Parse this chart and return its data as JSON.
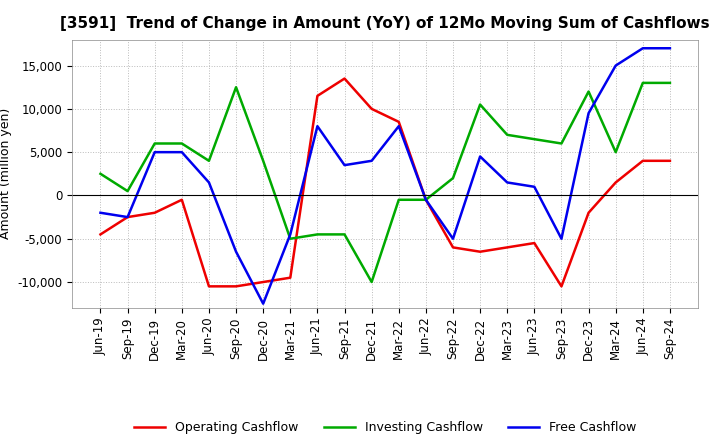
{
  "title": "[3591]  Trend of Change in Amount (YoY) of 12Mo Moving Sum of Cashflows",
  "ylabel": "Amount (million yen)",
  "x_labels": [
    "Jun-19",
    "Sep-19",
    "Dec-19",
    "Mar-20",
    "Jun-20",
    "Sep-20",
    "Dec-20",
    "Mar-21",
    "Jun-21",
    "Sep-21",
    "Dec-21",
    "Mar-22",
    "Jun-22",
    "Sep-22",
    "Dec-22",
    "Mar-23",
    "Jun-23",
    "Sep-23",
    "Dec-23",
    "Mar-24",
    "Jun-24",
    "Sep-24"
  ],
  "operating": [
    -4500,
    -2500,
    -2000,
    -500,
    -10500,
    -10500,
    -10000,
    -9500,
    11500,
    13500,
    10000,
    8500,
    -500,
    -6000,
    -6500,
    -6000,
    -5500,
    -10500,
    -2000,
    1500,
    4000,
    4000
  ],
  "investing": [
    2500,
    500,
    6000,
    6000,
    4000,
    12500,
    4000,
    -5000,
    -4500,
    -4500,
    -10000,
    -500,
    -500,
    2000,
    10500,
    7000,
    6500,
    6000,
    12000,
    5000,
    13000,
    13000
  ],
  "free": [
    -2000,
    -2500,
    5000,
    5000,
    1500,
    -6500,
    -12500,
    -4500,
    8000,
    3500,
    4000,
    8000,
    -500,
    -5000,
    4500,
    1500,
    1000,
    -5000,
    9500,
    15000,
    17000,
    17000
  ],
  "operating_color": "#EE0000",
  "investing_color": "#00AA00",
  "free_color": "#0000EE",
  "ylim": [
    -13000,
    18000
  ],
  "yticks": [
    -10000,
    -5000,
    0,
    5000,
    10000,
    15000
  ],
  "bg_color": "#FFFFFF",
  "grid_color": "#BBBBBB",
  "title_fontsize": 11,
  "axis_fontsize": 8.5,
  "ylabel_fontsize": 9
}
